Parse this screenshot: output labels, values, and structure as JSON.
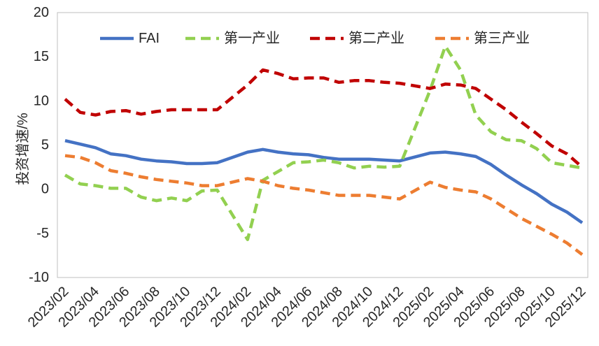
{
  "chart_data": {
    "type": "line",
    "ylabel": "投资增速/%",
    "ylim": [
      -10,
      20
    ],
    "yticks": [
      -10,
      -5,
      0,
      5,
      10,
      15,
      20
    ],
    "xlim": [
      "2023/02",
      "2025/12"
    ],
    "xticks": [
      "2023/02",
      "2023/04",
      "2023/06",
      "2023/08",
      "2023/10",
      "2023/12",
      "2024/02",
      "2024/04",
      "2024/06",
      "2024/08",
      "2024/10",
      "2024/12",
      "2025/02",
      "2025/04",
      "2025/06",
      "2025/08",
      "2025/10",
      "2025/12"
    ],
    "grid": false,
    "legend": "top",
    "x": [
      "2023/02",
      "2023/03",
      "2023/04",
      "2023/05",
      "2023/06",
      "2023/07",
      "2023/08",
      "2023/09",
      "2023/10",
      "2023/11",
      "2023/12",
      "2024/02",
      "2024/03",
      "2024/04",
      "2024/05",
      "2024/06",
      "2024/07",
      "2024/08",
      "2024/09",
      "2024/10",
      "2024/11",
      "2024/12",
      "2025/02",
      "2025/03",
      "2025/04",
      "2025/05",
      "2025/06",
      "2025/07",
      "2025/08",
      "2025/09",
      "2025/10",
      "2025/11",
      "2025/12"
    ],
    "series": [
      {
        "name": "FAI",
        "color": "#4472C4",
        "dashed": false,
        "values": [
          5.5,
          5.1,
          4.7,
          4.0,
          3.8,
          3.4,
          3.2,
          3.1,
          2.9,
          2.9,
          3.0,
          4.2,
          4.5,
          4.2,
          4.0,
          3.9,
          3.6,
          3.4,
          3.4,
          3.4,
          3.3,
          3.2,
          4.1,
          4.2,
          4.0,
          3.7,
          2.8,
          1.6,
          0.5,
          -0.5,
          -1.7,
          -2.6,
          -3.8
        ]
      },
      {
        "name": "第一产业",
        "color": "#92D050",
        "dashed": true,
        "values": [
          1.6,
          0.6,
          0.4,
          0.1,
          0.1,
          -0.9,
          -1.3,
          -1.0,
          -1.3,
          -0.2,
          -0.1,
          -5.7,
          1.0,
          2.0,
          3.0,
          3.1,
          3.3,
          3.0,
          2.4,
          2.6,
          2.5,
          2.6,
          11.2,
          16.2,
          13.5,
          8.4,
          6.5,
          5.6,
          5.5,
          4.6,
          3.0,
          2.7,
          2.4
        ]
      },
      {
        "name": "第二产业",
        "color": "#C00000",
        "dashed": true,
        "values": [
          10.2,
          8.7,
          8.4,
          8.8,
          8.9,
          8.5,
          8.8,
          9.0,
          9.0,
          9.0,
          9.0,
          11.8,
          13.5,
          13.1,
          12.5,
          12.6,
          12.6,
          12.1,
          12.3,
          12.3,
          12.1,
          12.0,
          11.4,
          11.9,
          11.8,
          11.4,
          10.2,
          9.0,
          7.6,
          6.3,
          4.9,
          4.0,
          2.5
        ]
      },
      {
        "name": "第三产业",
        "color": "#ED7D31",
        "dashed": true,
        "values": [
          3.8,
          3.6,
          3.0,
          2.1,
          1.8,
          1.4,
          1.1,
          0.9,
          0.7,
          0.4,
          0.4,
          1.2,
          0.9,
          0.4,
          0.1,
          -0.1,
          -0.4,
          -0.7,
          -0.7,
          -0.7,
          -0.9,
          -1.1,
          0.8,
          0.2,
          -0.1,
          -0.3,
          -1.1,
          -2.2,
          -3.3,
          -4.2,
          -5.1,
          -6.1,
          -7.4
        ]
      }
    ]
  }
}
